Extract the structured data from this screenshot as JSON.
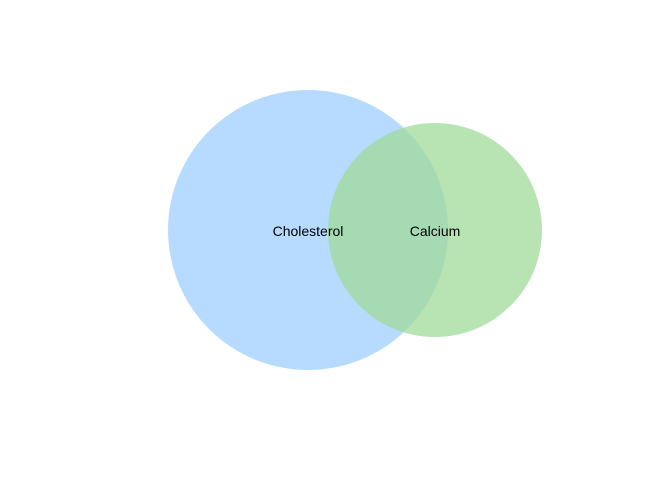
{
  "diagram": {
    "type": "venn",
    "sets": [
      {
        "label": "Cholesterol",
        "color": "#99CCFF",
        "opacity": 0.7
      },
      {
        "label": "Calcium",
        "color": "#A0D998",
        "opacity": 0.75
      }
    ],
    "overlap_color": "#88C8C8"
  }
}
